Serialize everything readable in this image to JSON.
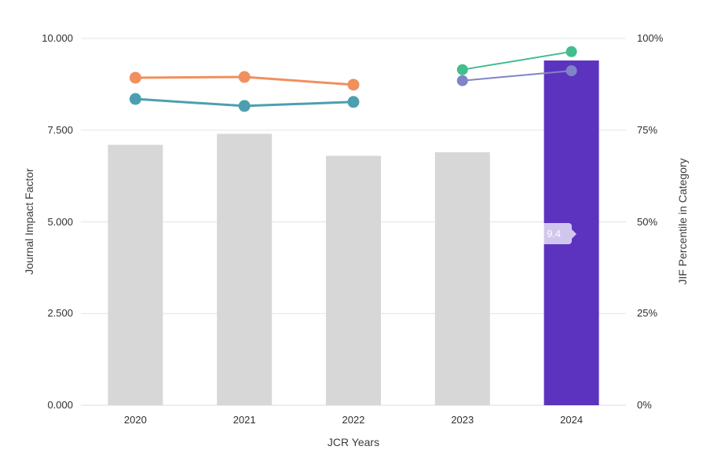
{
  "chart_data": {
    "type": "bar+line",
    "title": "",
    "xlabel": "JCR Years",
    "categories": [
      "2020",
      "2021",
      "2022",
      "2023",
      "2024"
    ],
    "left_axis": {
      "label": "Journal Impact Factor",
      "ticks": [
        "0.000",
        "2.500",
        "5.000",
        "7.500",
        "10.000"
      ],
      "tick_values": [
        0,
        2.5,
        5,
        7.5,
        10
      ],
      "range": [
        0,
        10
      ]
    },
    "right_axis": {
      "label": "JIF Percentile in Category",
      "ticks": [
        "0%",
        "25%",
        "50%",
        "75%",
        "100%"
      ],
      "tick_values": [
        0,
        25,
        50,
        75,
        100
      ],
      "range": [
        0,
        100
      ]
    },
    "bars": {
      "name": "Journal Impact Factor",
      "values": [
        7.1,
        7.4,
        6.8,
        6.9,
        9.4
      ],
      "highlighted_category": "2024"
    },
    "lines": [
      {
        "name": "jif-percentile-category-1",
        "color": "#F0905E",
        "points": [
          {
            "category": "2020",
            "value": 89.3
          },
          {
            "category": "2021",
            "value": 89.5
          },
          {
            "category": "2022",
            "value": 87.4
          }
        ]
      },
      {
        "name": "jif-percentile-category-2",
        "color": "#4D9FB0",
        "points": [
          {
            "category": "2020",
            "value": 83.5
          },
          {
            "category": "2021",
            "value": 81.6
          },
          {
            "category": "2022",
            "value": 82.7
          }
        ]
      },
      {
        "name": "jif-percentile-category-3",
        "color": "#41BE8D",
        "points": [
          {
            "category": "2023",
            "value": 91.5
          },
          {
            "category": "2024",
            "value": 96.4
          }
        ]
      },
      {
        "name": "jif-percentile-category-4",
        "color": "#7F84C6",
        "points": [
          {
            "category": "2023",
            "value": 88.5
          },
          {
            "category": "2024",
            "value": 91.2
          }
        ]
      }
    ],
    "grid": true,
    "legend": "none"
  },
  "colors": {
    "bar_default": "#D7D7D7",
    "bar_highlight": "#5C33BE",
    "grid_line": "#E4E4E4",
    "axis_line": "#DCDCDC",
    "tick_text": "#2F2F2F",
    "axis_title_text": "#3C3C3C",
    "background": "#FFFFFF"
  },
  "tooltip": {
    "label": "JIF: 9.4"
  }
}
